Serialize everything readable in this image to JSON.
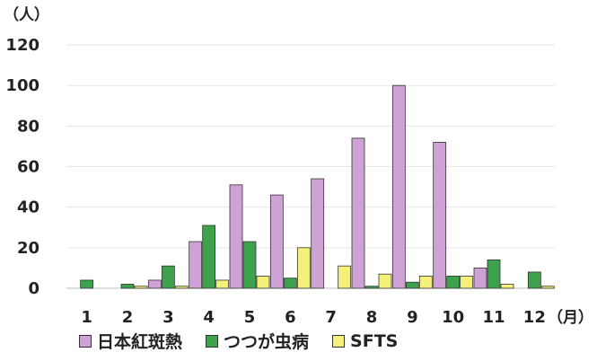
{
  "chart_data": {
    "type": "bar",
    "y_unit_label": "（人）",
    "x_unit_label": "（月）",
    "categories": [
      "1",
      "2",
      "3",
      "4",
      "5",
      "6",
      "7",
      "8",
      "9",
      "10",
      "11",
      "12"
    ],
    "ylim": [
      0,
      120
    ],
    "yticks": [
      "0",
      "20",
      "40",
      "60",
      "80",
      "100",
      "120"
    ],
    "grid": true,
    "legend_position": "bottom",
    "series": [
      {
        "name": "日本紅斑熱",
        "color": "#CFA2D6",
        "values": [
          0,
          0,
          4,
          23,
          51,
          46,
          54,
          74,
          100,
          72,
          10,
          0
        ]
      },
      {
        "name": "つつが虫病",
        "color": "#3EA24C",
        "values": [
          4,
          2,
          11,
          31,
          23,
          5,
          0,
          1,
          3,
          6,
          14,
          8
        ]
      },
      {
        "name": "SFTS",
        "color": "#F5F07A",
        "values": [
          0,
          1,
          1,
          4,
          6,
          20,
          11,
          7,
          6,
          6,
          2,
          1
        ]
      }
    ]
  }
}
